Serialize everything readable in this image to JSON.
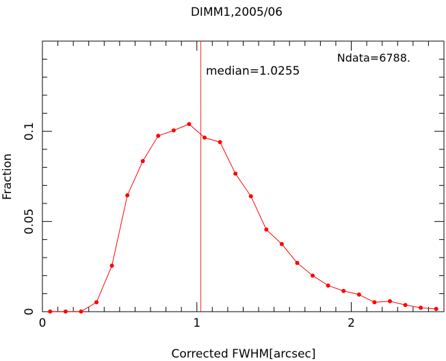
{
  "chart_data": {
    "type": "line",
    "title": "DIMM1,2005/06",
    "xlabel": "Corrected FWHM[arcsec]",
    "ylabel": "Fraction",
    "xlim": [
      0,
      2.6
    ],
    "ylim": [
      0,
      0.15
    ],
    "x_ticks": [
      {
        "value": 0,
        "label": "0"
      },
      {
        "value": 1,
        "label": "1"
      },
      {
        "value": 2,
        "label": "2"
      }
    ],
    "y_ticks": [
      {
        "value": 0,
        "label": "0"
      },
      {
        "value": 0.05,
        "label": "0.05"
      },
      {
        "value": 0.1,
        "label": "0.1"
      }
    ],
    "x_minor_step": 0.1,
    "y_minor_step": 0.01,
    "grid": false,
    "series": [
      {
        "color": "#ff0000",
        "x": [
          0.05,
          0.15,
          0.25,
          0.35,
          0.45,
          0.55,
          0.65,
          0.75,
          0.85,
          0.95,
          1.05,
          1.15,
          1.25,
          1.35,
          1.45,
          1.55,
          1.65,
          1.75,
          1.85,
          1.95,
          2.05,
          2.15,
          2.25,
          2.35,
          2.45,
          2.55
        ],
        "y": [
          0.0001,
          0.0001,
          0.0001,
          0.0052,
          0.0255,
          0.0645,
          0.0835,
          0.0975,
          0.1005,
          0.104,
          0.0965,
          0.094,
          0.0765,
          0.064,
          0.0455,
          0.0375,
          0.027,
          0.02,
          0.0145,
          0.0115,
          0.0095,
          0.0052,
          0.0058,
          0.0037,
          0.0022,
          0.0015
        ]
      }
    ],
    "median": {
      "value": 1.0255,
      "label": "median=1.0255",
      "color": "#ff0000"
    },
    "annotations": [
      {
        "text": "Ndata=6788."
      }
    ]
  }
}
